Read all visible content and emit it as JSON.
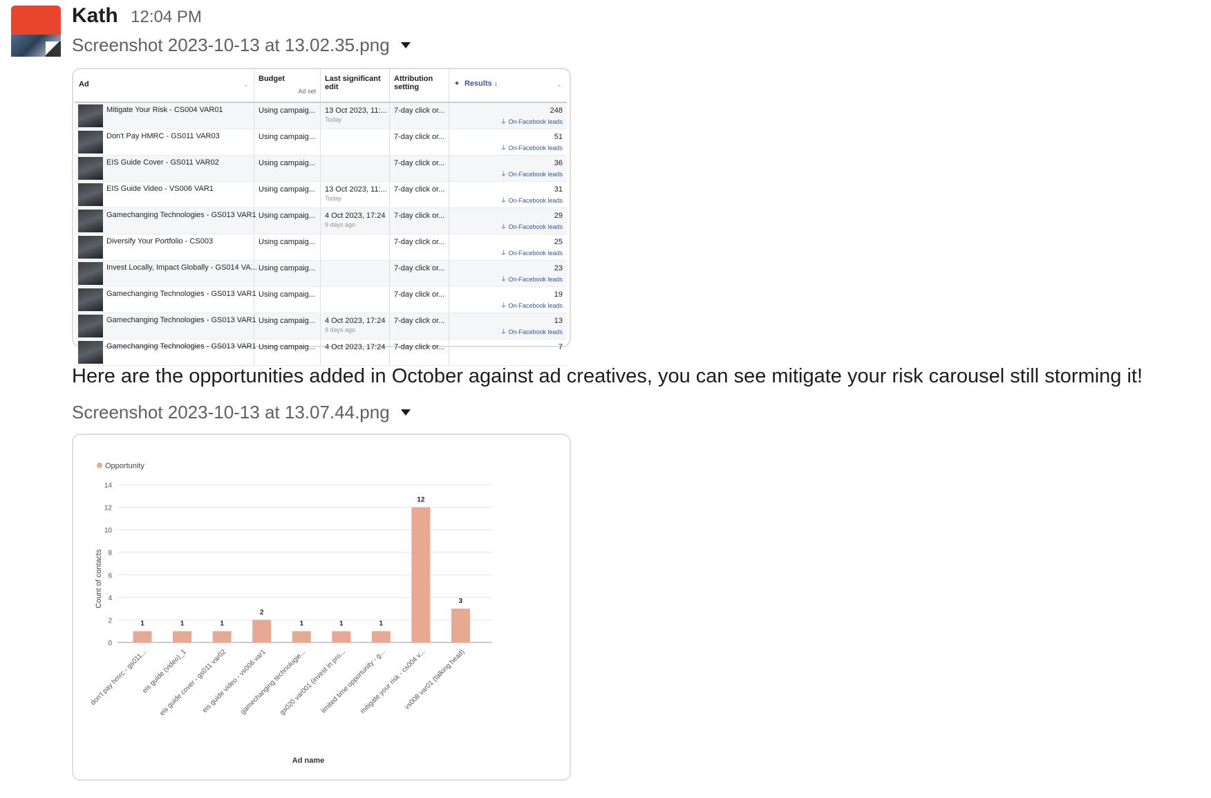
{
  "message": {
    "sender": "Kath",
    "time": "12:04 PM",
    "text": "Here are the opportunities added in October against ad creatives, you can see mitigate your risk carousel still storming it!",
    "attachments": [
      {
        "filename": "Screenshot 2023-10-13 at 13.02.35.png"
      },
      {
        "filename": "Screenshot 2023-10-13 at 13.07.44.png"
      }
    ]
  },
  "ads_table": {
    "headers": {
      "ad": "Ad",
      "budget": "Budget",
      "budget_sub": "Ad set",
      "last_edit": "Last significant edit",
      "attribution": "Attribution setting",
      "results": "Results ↓"
    },
    "rows": [
      {
        "ad": "Mitigate Your Risk - CS004 VAR01",
        "budget": "Using campaig...",
        "edit": "13 Oct 2023, 11:...",
        "edit_sub": "Today",
        "attribution": "7-day click or...",
        "results": "248",
        "results_type": "On-Facebook leads"
      },
      {
        "ad": "Don't Pay HMRC - GS011 VAR03",
        "budget": "Using campaig...",
        "edit": "",
        "edit_sub": "",
        "attribution": "7-day click or...",
        "results": "51",
        "results_type": "On-Facebook leads"
      },
      {
        "ad": "EIS Guide Cover - GS011 VAR02",
        "budget": "Using campaig...",
        "edit": "",
        "edit_sub": "",
        "attribution": "7-day click or...",
        "results": "36",
        "results_type": "On-Facebook leads"
      },
      {
        "ad": "EIS Guide Video - VS006 VAR1",
        "budget": "Using campaig...",
        "edit": "13 Oct 2023, 11:...",
        "edit_sub": "Today",
        "attribution": "7-day click or...",
        "results": "31",
        "results_type": "On-Facebook leads"
      },
      {
        "ad": "Gamechanging Technologies - GS013 VAR1",
        "budget": "Using campaig...",
        "edit": "4 Oct 2023, 17:24",
        "edit_sub": "9 days ago",
        "attribution": "7-day click or...",
        "results": "29",
        "results_type": "On-Facebook leads"
      },
      {
        "ad": "Diversify Your Portfolio - CS003",
        "budget": "Using campaig...",
        "edit": "",
        "edit_sub": "",
        "attribution": "7-day click or...",
        "results": "25",
        "results_type": "On-Facebook leads"
      },
      {
        "ad": "Invest Locally, Impact Globally - GS014 VA...",
        "budget": "Using campaig...",
        "edit": "",
        "edit_sub": "",
        "attribution": "7-day click or...",
        "results": "23",
        "results_type": "On-Facebook leads"
      },
      {
        "ad": "Gamechanging Technologies - GS013 VAR1",
        "budget": "Using campaig...",
        "edit": "",
        "edit_sub": "",
        "attribution": "7-day click or...",
        "results": "19",
        "results_type": "On-Facebook leads"
      },
      {
        "ad": "Gamechanging Technologies - GS013 VAR1",
        "budget": "Using campaig...",
        "edit": "4 Oct 2023, 17:24",
        "edit_sub": "9 days ago",
        "attribution": "7-day click or...",
        "results": "13",
        "results_type": "On-Facebook leads"
      },
      {
        "ad": "Gamechanging Technologies - GS013 VAR1",
        "budget": "Using campaig...",
        "edit": "4 Oct 2023, 17:24",
        "edit_sub": "",
        "attribution": "7-day click or...",
        "results": "7",
        "results_type": ""
      }
    ]
  },
  "chart_data": {
    "type": "bar",
    "title": "",
    "legend": [
      "Opportunity"
    ],
    "legend_position": "top-left",
    "xlabel": "Ad name",
    "ylabel": "Count of contacts",
    "ylim": [
      0,
      14
    ],
    "yticks": [
      0,
      2,
      4,
      6,
      8,
      10,
      12,
      14
    ],
    "grid": true,
    "color": "#e8a993",
    "categories": [
      "don't pay hmrc - gs011...",
      "eis guide (video)_1",
      "eis guide cover - gs011 var02",
      "eis guide video - vs006 var1",
      "gamechanging technologie...",
      "gs020 var001 (invest in pro...",
      "limited time opportunity - g...",
      "mitigate your risk - cs004 v...",
      "vs008 var01 (talking head)"
    ],
    "series": [
      {
        "name": "Opportunity",
        "values": [
          1,
          1,
          1,
          2,
          1,
          1,
          1,
          12,
          3
        ]
      }
    ]
  }
}
